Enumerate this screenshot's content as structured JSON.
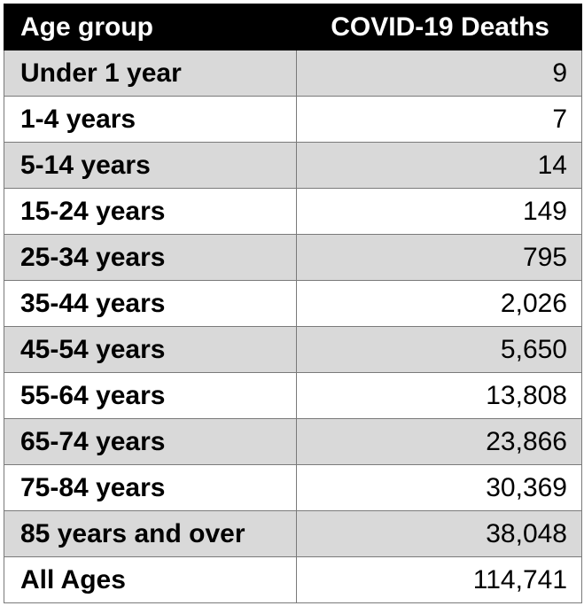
{
  "table": {
    "headers": [
      "Age group",
      "COVID-19 Deaths"
    ],
    "rows": [
      [
        "Under 1 year",
        "9"
      ],
      [
        "1-4 years",
        "7"
      ],
      [
        "5-14 years",
        "14"
      ],
      [
        "15-24 years",
        "149"
      ],
      [
        "25-34 years",
        "795"
      ],
      [
        "35-44 years",
        "2,026"
      ],
      [
        "45-54 years",
        "5,650"
      ],
      [
        "55-64 years",
        "13,808"
      ],
      [
        "65-74 years",
        "23,866"
      ],
      [
        "75-84 years",
        "30,369"
      ],
      [
        "85 years and over",
        "38,048"
      ],
      [
        "All Ages",
        "114,741"
      ]
    ]
  },
  "colors": {
    "header_bg": "#000000",
    "header_text": "#ffffff",
    "shaded_row": "#d9d9d9",
    "plain_row": "#ffffff"
  }
}
